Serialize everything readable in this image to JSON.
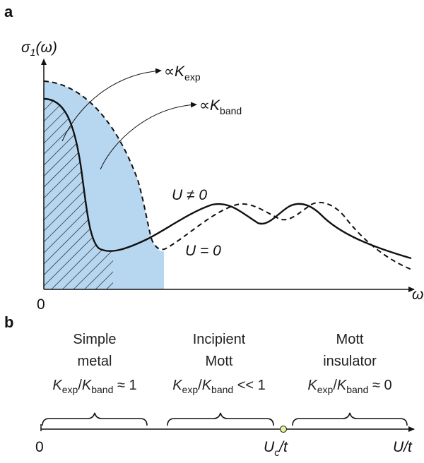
{
  "panel_a": {
    "tag": "a",
    "y_label": {
      "symbol": "σ",
      "sub": "1",
      "rest": "(ω)"
    },
    "x_label": "ω",
    "origin_label": "0",
    "annotation_kexp": {
      "prefix": "∝",
      "k": "K",
      "sub": "exp"
    },
    "annotation_kband": {
      "prefix": "∝",
      "k": "K",
      "sub": "band"
    },
    "curve_label_interacting": "U ≠ 0",
    "curve_label_free": "U = 0",
    "colors": {
      "shaded_region": "#b7d6ef",
      "curve": "#111111",
      "hatch": "#222222"
    }
  },
  "panel_b": {
    "tag": "b",
    "regimes": [
      {
        "line1": "Simple",
        "line2": "metal",
        "k1sub": "exp",
        "k2sub": "band",
        "relation": "≈ 1"
      },
      {
        "line1": "Incipient",
        "line2": "Mott",
        "k1sub": "exp",
        "k2sub": "band",
        "relation": "<< 1"
      },
      {
        "line1": "Mott",
        "line2": "insulator",
        "k1sub": "exp",
        "k2sub": "band",
        "relation": "≈ 0"
      }
    ],
    "axis_start": "0",
    "uc_label": {
      "u": "U",
      "sub": "c",
      "rest": "/t"
    },
    "axis_end": "U/t",
    "colors": {
      "critical_point": "#e6ef9a"
    }
  }
}
